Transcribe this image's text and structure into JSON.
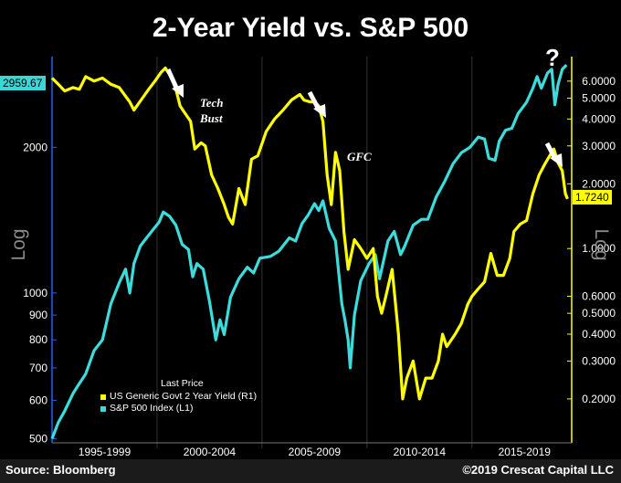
{
  "title": "2-Year Yield vs. S&P 500",
  "source": "Source: Bloomberg",
  "copyright": "©2019 Crescat Capital LLC",
  "question_mark": "?",
  "annotations": {
    "tech_bust_1": "Tech",
    "tech_bust_2": "Bust",
    "gfc": "GFC"
  },
  "legend": {
    "title": "Last Price",
    "items": [
      {
        "label": "US Generic Govt 2 Year Yield  (R1)",
        "color": "#ffff00"
      },
      {
        "label": "S&P 500 Index  (L1)",
        "color": "#3cdcdc"
      }
    ]
  },
  "chart_data": {
    "type": "line",
    "title": "2-Year Yield vs. S&P 500",
    "x_range": [
      1995.0,
      2019.75
    ],
    "x_tick_labels": [
      "1995-1999",
      "2000-2004",
      "2005-2009",
      "2010-2014",
      "2015-2019"
    ],
    "left_axis": {
      "label": "Log",
      "scale": "log",
      "range": [
        490,
        3080
      ],
      "ticks": [
        500,
        600,
        700,
        800,
        900,
        1000,
        2000
      ],
      "last_price": "2959.67"
    },
    "right_axis": {
      "label": "Log",
      "scale": "log",
      "range": [
        0.125,
        7.8
      ],
      "ticks": [
        "6.0000",
        "5.0000",
        "4.0000",
        "3.0000",
        "2.0000",
        "1.0000",
        "0.6000",
        "0.5000",
        "0.4000",
        "0.3000",
        "0.2000"
      ],
      "last_price": "1.7240"
    },
    "series": [
      {
        "name": "US Generic Govt 2 Year Yield (R1)",
        "axis": "right",
        "color": "#ffff00",
        "x": [
          1995.0,
          1995.3,
          1995.6,
          1996.0,
          1996.3,
          1996.6,
          1997.0,
          1997.4,
          1997.8,
          1998.2,
          1998.7,
          1998.9,
          1999.3,
          1999.6,
          1999.9,
          2000.2,
          2000.4,
          2000.7,
          2000.9,
          2001.1,
          2001.3,
          2001.6,
          2001.8,
          2002.1,
          2002.3,
          2002.6,
          2002.9,
          2003.2,
          2003.4,
          2003.6,
          2003.9,
          2004.2,
          2004.5,
          2004.8,
          2005.2,
          2005.6,
          2006.0,
          2006.4,
          2006.8,
          2007.0,
          2007.3,
          2007.5,
          2007.7,
          2007.9,
          2008.1,
          2008.3,
          2008.5,
          2008.7,
          2008.9,
          2009.1,
          2009.4,
          2009.7,
          2010.0,
          2010.3,
          2010.5,
          2010.7,
          2010.9,
          2011.2,
          2011.5,
          2011.7,
          2011.9,
          2012.2,
          2012.5,
          2012.8,
          2013.1,
          2013.4,
          2013.6,
          2013.8,
          2014.2,
          2014.5,
          2014.8,
          2015.0,
          2015.3,
          2015.6,
          2015.9,
          2016.2,
          2016.5,
          2016.8,
          2017.0,
          2017.3,
          2017.6,
          2017.9,
          2018.2,
          2018.5,
          2018.8,
          2018.9,
          2019.1,
          2019.3,
          2019.45,
          2019.55
        ],
        "values": [
          6.2,
          5.8,
          5.4,
          5.6,
          5.5,
          6.3,
          6.0,
          6.2,
          5.8,
          5.6,
          4.8,
          4.4,
          5.0,
          5.5,
          6.0,
          6.6,
          6.9,
          6.2,
          5.5,
          4.6,
          4.3,
          3.9,
          2.9,
          3.1,
          3.0,
          2.2,
          1.9,
          1.6,
          1.4,
          1.3,
          1.9,
          1.6,
          2.6,
          2.7,
          3.5,
          4.0,
          4.4,
          4.9,
          5.2,
          4.9,
          4.8,
          4.8,
          4.6,
          3.9,
          2.2,
          1.6,
          2.8,
          2.3,
          1.2,
          0.8,
          1.1,
          1.0,
          0.9,
          1.0,
          0.6,
          0.5,
          0.6,
          0.8,
          0.4,
          0.2,
          0.25,
          0.3,
          0.2,
          0.25,
          0.25,
          0.3,
          0.4,
          0.35,
          0.4,
          0.45,
          0.55,
          0.6,
          0.65,
          0.7,
          0.95,
          0.75,
          0.75,
          0.9,
          1.2,
          1.3,
          1.35,
          1.8,
          2.2,
          2.5,
          2.8,
          2.9,
          2.5,
          2.3,
          1.8,
          1.7
        ]
      },
      {
        "name": "S&P 500 Index (L1)",
        "axis": "left",
        "color": "#3cdcdc",
        "x": [
          1995.0,
          1995.3,
          1995.6,
          1996.0,
          1996.3,
          1996.6,
          1997.0,
          1997.4,
          1997.8,
          1998.2,
          1998.5,
          1998.7,
          1998.9,
          1999.2,
          1999.5,
          1999.8,
          2000.1,
          2000.3,
          2000.6,
          2000.9,
          2001.2,
          2001.5,
          2001.7,
          2001.9,
          2002.2,
          2002.5,
          2002.8,
          2003.0,
          2003.2,
          2003.5,
          2003.9,
          2004.3,
          2004.6,
          2004.9,
          2005.4,
          2005.8,
          2006.3,
          2006.6,
          2006.9,
          2007.2,
          2007.5,
          2007.7,
          2007.9,
          2008.2,
          2008.5,
          2008.8,
          2008.95,
          2009.1,
          2009.2,
          2009.4,
          2009.7,
          2010.1,
          2010.4,
          2010.6,
          2011.0,
          2011.3,
          2011.6,
          2011.8,
          2012.2,
          2012.6,
          2012.9,
          2013.3,
          2013.7,
          2014.1,
          2014.5,
          2014.9,
          2015.3,
          2015.6,
          2015.8,
          2016.1,
          2016.3,
          2016.6,
          2016.9,
          2017.2,
          2017.6,
          2017.9,
          2018.1,
          2018.3,
          2018.6,
          2018.8,
          2018.95,
          2019.1,
          2019.3,
          2019.5
        ],
        "values": [
          500,
          540,
          570,
          620,
          650,
          680,
          760,
          800,
          950,
          1050,
          1120,
          1000,
          1150,
          1250,
          1300,
          1350,
          1400,
          1470,
          1440,
          1380,
          1260,
          1230,
          1080,
          1150,
          1120,
          960,
          800,
          880,
          820,
          980,
          1070,
          1130,
          1100,
          1180,
          1190,
          1220,
          1300,
          1280,
          1390,
          1450,
          1530,
          1480,
          1550,
          1360,
          1280,
          950,
          880,
          800,
          700,
          900,
          1060,
          1150,
          1200,
          1070,
          1280,
          1340,
          1200,
          1250,
          1380,
          1420,
          1420,
          1580,
          1700,
          1850,
          1950,
          2000,
          2100,
          2080,
          1900,
          1880,
          2060,
          2170,
          2190,
          2350,
          2480,
          2650,
          2800,
          2650,
          2850,
          2900,
          2450,
          2700,
          2900,
          2960
        ]
      }
    ]
  }
}
